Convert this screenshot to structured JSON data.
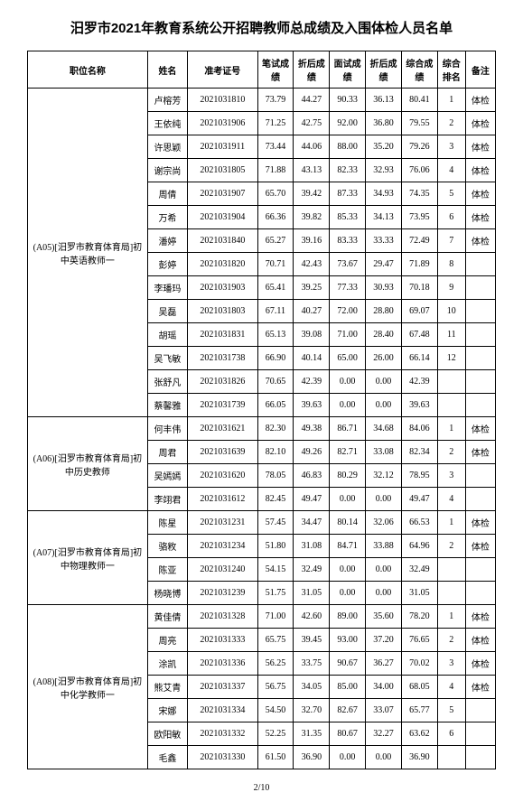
{
  "title": "汨罗市2021年教育系统公开招聘教师总成绩及入围体检人员名单",
  "headers": {
    "position": "职位名称",
    "name": "姓名",
    "id": "准考证号",
    "written": "笔试成绩",
    "wconv": "折后成绩",
    "interview": "面试成绩",
    "iconv": "折后成绩",
    "total": "综合成绩",
    "rank": "综合排名",
    "note": "备注"
  },
  "groups": [
    {
      "position": "(A05)[汨罗市教育体育局]初中英语教师一",
      "rows": [
        {
          "name": "卢榕芳",
          "id": "2021031810",
          "written": "73.79",
          "wconv": "44.27",
          "interview": "90.33",
          "iconv": "36.13",
          "total": "80.41",
          "rank": "1",
          "note": "体检"
        },
        {
          "name": "王依纯",
          "id": "2021031906",
          "written": "71.25",
          "wconv": "42.75",
          "interview": "92.00",
          "iconv": "36.80",
          "total": "79.55",
          "rank": "2",
          "note": "体检"
        },
        {
          "name": "许思颖",
          "id": "2021031911",
          "written": "73.44",
          "wconv": "44.06",
          "interview": "88.00",
          "iconv": "35.20",
          "total": "79.26",
          "rank": "3",
          "note": "体检"
        },
        {
          "name": "谢宗尚",
          "id": "2021031805",
          "written": "71.88",
          "wconv": "43.13",
          "interview": "82.33",
          "iconv": "32.93",
          "total": "76.06",
          "rank": "4",
          "note": "体检"
        },
        {
          "name": "周倩",
          "id": "2021031907",
          "written": "65.70",
          "wconv": "39.42",
          "interview": "87.33",
          "iconv": "34.93",
          "total": "74.35",
          "rank": "5",
          "note": "体检"
        },
        {
          "name": "万希",
          "id": "2021031904",
          "written": "66.36",
          "wconv": "39.82",
          "interview": "85.33",
          "iconv": "34.13",
          "total": "73.95",
          "rank": "6",
          "note": "体检"
        },
        {
          "name": "潘婷",
          "id": "2021031840",
          "written": "65.27",
          "wconv": "39.16",
          "interview": "83.33",
          "iconv": "33.33",
          "total": "72.49",
          "rank": "7",
          "note": "体检"
        },
        {
          "name": "彭婷",
          "id": "2021031820",
          "written": "70.71",
          "wconv": "42.43",
          "interview": "73.67",
          "iconv": "29.47",
          "total": "71.89",
          "rank": "8",
          "note": ""
        },
        {
          "name": "李璠玛",
          "id": "2021031903",
          "written": "65.41",
          "wconv": "39.25",
          "interview": "77.33",
          "iconv": "30.93",
          "total": "70.18",
          "rank": "9",
          "note": ""
        },
        {
          "name": "吴磊",
          "id": "2021031803",
          "written": "67.11",
          "wconv": "40.27",
          "interview": "72.00",
          "iconv": "28.80",
          "total": "69.07",
          "rank": "10",
          "note": ""
        },
        {
          "name": "胡瑶",
          "id": "2021031831",
          "written": "65.13",
          "wconv": "39.08",
          "interview": "71.00",
          "iconv": "28.40",
          "total": "67.48",
          "rank": "11",
          "note": ""
        },
        {
          "name": "吴飞敏",
          "id": "2021031738",
          "written": "66.90",
          "wconv": "40.14",
          "interview": "65.00",
          "iconv": "26.00",
          "total": "66.14",
          "rank": "12",
          "note": ""
        },
        {
          "name": "张舒凡",
          "id": "2021031826",
          "written": "70.65",
          "wconv": "42.39",
          "interview": "0.00",
          "iconv": "0.00",
          "total": "42.39",
          "rank": "",
          "note": ""
        },
        {
          "name": "蔡馨雅",
          "id": "2021031739",
          "written": "66.05",
          "wconv": "39.63",
          "interview": "0.00",
          "iconv": "0.00",
          "total": "39.63",
          "rank": "",
          "note": ""
        }
      ]
    },
    {
      "position": "(A06)[汨罗市教育体育局]初中历史教师",
      "rows": [
        {
          "name": "何丰伟",
          "id": "2021031621",
          "written": "82.30",
          "wconv": "49.38",
          "interview": "86.71",
          "iconv": "34.68",
          "total": "84.06",
          "rank": "1",
          "note": "体检"
        },
        {
          "name": "周君",
          "id": "2021031639",
          "written": "82.10",
          "wconv": "49.26",
          "interview": "82.71",
          "iconv": "33.08",
          "total": "82.34",
          "rank": "2",
          "note": "体检"
        },
        {
          "name": "吴嫣嫣",
          "id": "2021031620",
          "written": "78.05",
          "wconv": "46.83",
          "interview": "80.29",
          "iconv": "32.12",
          "total": "78.95",
          "rank": "3",
          "note": ""
        },
        {
          "name": "李翊君",
          "id": "2021031612",
          "written": "82.45",
          "wconv": "49.47",
          "interview": "0.00",
          "iconv": "0.00",
          "total": "49.47",
          "rank": "4",
          "note": ""
        }
      ]
    },
    {
      "position": "(A07)[汨罗市教育体育局]初中物理教师一",
      "rows": [
        {
          "name": "陈星",
          "id": "2021031231",
          "written": "57.45",
          "wconv": "34.47",
          "interview": "80.14",
          "iconv": "32.06",
          "total": "66.53",
          "rank": "1",
          "note": "体检"
        },
        {
          "name": "骆敉",
          "id": "2021031234",
          "written": "51.80",
          "wconv": "31.08",
          "interview": "84.71",
          "iconv": "33.88",
          "total": "64.96",
          "rank": "2",
          "note": "体检"
        },
        {
          "name": "陈亚",
          "id": "2021031240",
          "written": "54.15",
          "wconv": "32.49",
          "interview": "0.00",
          "iconv": "0.00",
          "total": "32.49",
          "rank": "",
          "note": ""
        },
        {
          "name": "杨晓博",
          "id": "2021031239",
          "written": "51.75",
          "wconv": "31.05",
          "interview": "0.00",
          "iconv": "0.00",
          "total": "31.05",
          "rank": "",
          "note": ""
        }
      ]
    },
    {
      "position": "(A08)[汨罗市教育体育局]初中化学教师一",
      "rows": [
        {
          "name": "黄佳倩",
          "id": "2021031328",
          "written": "71.00",
          "wconv": "42.60",
          "interview": "89.00",
          "iconv": "35.60",
          "total": "78.20",
          "rank": "1",
          "note": "体检"
        },
        {
          "name": "周亮",
          "id": "2021031333",
          "written": "65.75",
          "wconv": "39.45",
          "interview": "93.00",
          "iconv": "37.20",
          "total": "76.65",
          "rank": "2",
          "note": "体检"
        },
        {
          "name": "涂凯",
          "id": "2021031336",
          "written": "56.25",
          "wconv": "33.75",
          "interview": "90.67",
          "iconv": "36.27",
          "total": "70.02",
          "rank": "3",
          "note": "体检"
        },
        {
          "name": "熊艾青",
          "id": "2021031337",
          "written": "56.75",
          "wconv": "34.05",
          "interview": "85.00",
          "iconv": "34.00",
          "total": "68.05",
          "rank": "4",
          "note": "体检"
        },
        {
          "name": "宋娜",
          "id": "2021031334",
          "written": "54.50",
          "wconv": "32.70",
          "interview": "82.67",
          "iconv": "33.07",
          "total": "65.77",
          "rank": "5",
          "note": ""
        },
        {
          "name": "欧阳敏",
          "id": "2021031332",
          "written": "52.25",
          "wconv": "31.35",
          "interview": "80.67",
          "iconv": "32.27",
          "total": "63.62",
          "rank": "6",
          "note": ""
        },
        {
          "name": "毛鑫",
          "id": "2021031330",
          "written": "61.50",
          "wconv": "36.90",
          "interview": "0.00",
          "iconv": "0.00",
          "total": "36.90",
          "rank": "",
          "note": ""
        }
      ]
    }
  ],
  "footer": "2/10"
}
